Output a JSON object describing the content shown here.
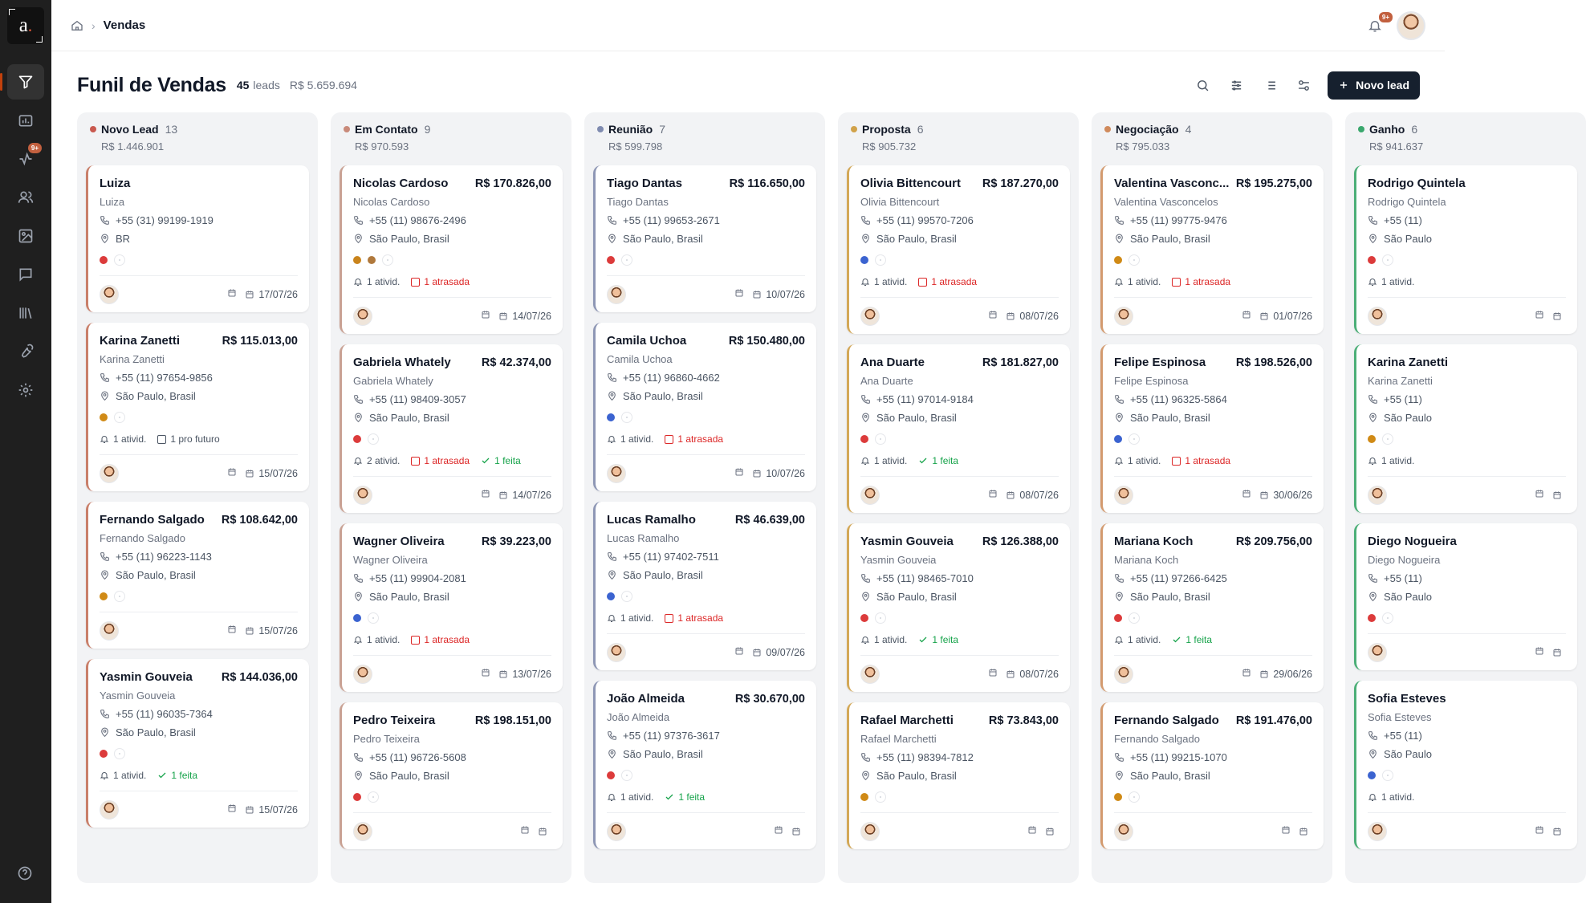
{
  "app": {
    "logo_letter": "a",
    "logo_dot": ".",
    "breadcrumb_current": "Vendas",
    "notifications_badge": "9+",
    "nav_badge": "9+"
  },
  "header": {
    "title": "Funil de Vendas",
    "lead_count": "45",
    "lead_word": "leads",
    "total": "R$ 5.659.694",
    "new_lead_label": "Novo lead"
  },
  "colors": {
    "accent": "#c2603f",
    "sidebar": "#1f1f1f",
    "late": "#dc2626",
    "done": "#16a34a",
    "primary_button": "#16202e"
  },
  "columns": [
    {
      "name": "Novo Lead",
      "count": "13",
      "total": "R$ 1.446.901",
      "color": "#c9594f",
      "border": "#c97f6a",
      "cards": [
        {
          "name": "Luiza",
          "value": "",
          "contact": "Luiza",
          "phone": "+55 (31) 99199-1919",
          "location": "BR",
          "tag": "#dc3b3b",
          "tag2": "",
          "acts": [],
          "date": "17/07/26"
        },
        {
          "name": "Karina Zanetti",
          "value": "R$ 115.013,00",
          "contact": "Karina Zanetti",
          "phone": "+55 (11) 97654-9856",
          "location": "São Paulo, Brasil",
          "tag": "#d08a16",
          "tag2": "",
          "acts": [
            {
              "type": "count",
              "text": "1 ativid."
            },
            {
              "type": "future",
              "text": "1 pro futuro"
            }
          ],
          "date": "15/07/26"
        },
        {
          "name": "Fernando Salgado",
          "value": "R$ 108.642,00",
          "contact": "Fernando Salgado",
          "phone": "+55 (11) 96223-1143",
          "location": "São Paulo, Brasil",
          "tag": "#d08a16",
          "tag2": "",
          "acts": [],
          "date": "15/07/26"
        },
        {
          "name": "Yasmin Gouveia",
          "value": "R$ 144.036,00",
          "contact": "Yasmin Gouveia",
          "phone": "+55 (11) 96035-7364",
          "location": "São Paulo, Brasil",
          "tag": "#dc3b3b",
          "tag2": "",
          "acts": [
            {
              "type": "count",
              "text": "1 ativid."
            },
            {
              "type": "done",
              "text": "1 feita"
            }
          ],
          "date": "15/07/26"
        }
      ]
    },
    {
      "name": "Em Contato",
      "count": "9",
      "total": "R$ 970.593",
      "color": "#c98a7a",
      "border": "#c9a193",
      "cards": [
        {
          "name": "Nicolas Cardoso",
          "value": "R$ 170.826,00",
          "contact": "Nicolas Cardoso",
          "phone": "+55 (11) 98676-2496",
          "location": "São Paulo, Brasil",
          "tag": "#c9841c",
          "tag2": "#b0793c",
          "acts": [
            {
              "type": "count",
              "text": "1 ativid."
            },
            {
              "type": "late",
              "text": "1 atrasada"
            }
          ],
          "date": "14/07/26"
        },
        {
          "name": "Gabriela Whately",
          "value": "R$ 42.374,00",
          "contact": "Gabriela Whately",
          "phone": "+55 (11) 98409-3057",
          "location": "São Paulo, Brasil",
          "tag": "#dc3b3b",
          "tag2": "",
          "acts": [
            {
              "type": "count",
              "text": "2 ativid."
            },
            {
              "type": "late",
              "text": "1 atrasada"
            },
            {
              "type": "done",
              "text": "1 feita"
            }
          ],
          "date": "14/07/26"
        },
        {
          "name": "Wagner Oliveira",
          "value": "R$ 39.223,00",
          "contact": "Wagner Oliveira",
          "phone": "+55 (11) 99904-2081",
          "location": "São Paulo, Brasil",
          "tag": "#3b63d0",
          "tag2": "",
          "acts": [
            {
              "type": "count",
              "text": "1 ativid."
            },
            {
              "type": "late",
              "text": "1 atrasada"
            }
          ],
          "date": "13/07/26"
        },
        {
          "name": "Pedro Teixeira",
          "value": "R$ 198.151,00",
          "contact": "Pedro Teixeira",
          "phone": "+55 (11) 96726-5608",
          "location": "São Paulo, Brasil",
          "tag": "#dc3b3b",
          "tag2": "",
          "acts": [],
          "date": ""
        }
      ]
    },
    {
      "name": "Reunião",
      "count": "7",
      "total": "R$ 599.798",
      "color": "#7f8bb0",
      "border": "#8e97b5",
      "cards": [
        {
          "name": "Tiago Dantas",
          "value": "R$ 116.650,00",
          "contact": "Tiago Dantas",
          "phone": "+55 (11) 99653-2671",
          "location": "São Paulo, Brasil",
          "tag": "#dc3b3b",
          "tag2": "",
          "acts": [],
          "date": "10/07/26"
        },
        {
          "name": "Camila Uchoa",
          "value": "R$ 150.480,00",
          "contact": "Camila Uchoa",
          "phone": "+55 (11) 96860-4662",
          "location": "São Paulo, Brasil",
          "tag": "#3b63d0",
          "tag2": "",
          "acts": [
            {
              "type": "count",
              "text": "1 ativid."
            },
            {
              "type": "late",
              "text": "1 atrasada"
            }
          ],
          "date": "10/07/26"
        },
        {
          "name": "Lucas Ramalho",
          "value": "R$ 46.639,00",
          "contact": "Lucas Ramalho",
          "phone": "+55 (11) 97402-7511",
          "location": "São Paulo, Brasil",
          "tag": "#3b63d0",
          "tag2": "",
          "acts": [
            {
              "type": "count",
              "text": "1 ativid."
            },
            {
              "type": "late",
              "text": "1 atrasada"
            }
          ],
          "date": "09/07/26"
        },
        {
          "name": "João Almeida",
          "value": "R$ 30.670,00",
          "contact": "João Almeida",
          "phone": "+55 (11) 97376-3617",
          "location": "São Paulo, Brasil",
          "tag": "#dc3b3b",
          "tag2": "",
          "acts": [
            {
              "type": "count",
              "text": "1 ativid."
            },
            {
              "type": "done",
              "text": "1 feita"
            }
          ],
          "date": ""
        }
      ]
    },
    {
      "name": "Proposta",
      "count": "6",
      "total": "R$ 905.732",
      "color": "#d1a24a",
      "border": "#d3a857",
      "cards": [
        {
          "name": "Olivia Bittencourt",
          "value": "R$ 187.270,00",
          "contact": "Olivia Bittencourt",
          "phone": "+55 (11) 99570-7206",
          "location": "São Paulo, Brasil",
          "tag": "#3b63d0",
          "tag2": "",
          "acts": [
            {
              "type": "count",
              "text": "1 ativid."
            },
            {
              "type": "late",
              "text": "1 atrasada"
            }
          ],
          "date": "08/07/26"
        },
        {
          "name": "Ana Duarte",
          "value": "R$ 181.827,00",
          "contact": "Ana Duarte",
          "phone": "+55 (11) 97014-9184",
          "location": "São Paulo, Brasil",
          "tag": "#dc3b3b",
          "tag2": "",
          "acts": [
            {
              "type": "count",
              "text": "1 ativid."
            },
            {
              "type": "done",
              "text": "1 feita"
            }
          ],
          "date": "08/07/26"
        },
        {
          "name": "Yasmin Gouveia",
          "value": "R$ 126.388,00",
          "contact": "Yasmin Gouveia",
          "phone": "+55 (11) 98465-7010",
          "location": "São Paulo, Brasil",
          "tag": "#dc3b3b",
          "tag2": "",
          "acts": [
            {
              "type": "count",
              "text": "1 ativid."
            },
            {
              "type": "done",
              "text": "1 feita"
            }
          ],
          "date": "08/07/26"
        },
        {
          "name": "Rafael Marchetti",
          "value": "R$ 73.843,00",
          "contact": "Rafael Marchetti",
          "phone": "+55 (11) 98394-7812",
          "location": "São Paulo, Brasil",
          "tag": "#d08a16",
          "tag2": "",
          "acts": [],
          "date": ""
        }
      ]
    },
    {
      "name": "Negociação",
      "count": "4",
      "total": "R$ 795.033",
      "color": "#d08a5c",
      "border": "#d39a6e",
      "cards": [
        {
          "name": "Valentina Vasconc...",
          "value": "R$ 195.275,00",
          "contact": "Valentina Vasconcelos",
          "phone": "+55 (11) 99775-9476",
          "location": "São Paulo, Brasil",
          "tag": "#d08a16",
          "tag2": "",
          "acts": [
            {
              "type": "count",
              "text": "1 ativid."
            },
            {
              "type": "late",
              "text": "1 atrasada"
            }
          ],
          "date": "01/07/26"
        },
        {
          "name": "Felipe Espinosa",
          "value": "R$ 198.526,00",
          "contact": "Felipe Espinosa",
          "phone": "+55 (11) 96325-5864",
          "location": "São Paulo, Brasil",
          "tag": "#3b63d0",
          "tag2": "",
          "acts": [
            {
              "type": "count",
              "text": "1 ativid."
            },
            {
              "type": "late",
              "text": "1 atrasada"
            }
          ],
          "date": "30/06/26"
        },
        {
          "name": "Mariana Koch",
          "value": "R$ 209.756,00",
          "contact": "Mariana Koch",
          "phone": "+55 (11) 97266-6425",
          "location": "São Paulo, Brasil",
          "tag": "#dc3b3b",
          "tag2": "",
          "acts": [
            {
              "type": "count",
              "text": "1 ativid."
            },
            {
              "type": "done",
              "text": "1 feita"
            }
          ],
          "date": "29/06/26"
        },
        {
          "name": "Fernando Salgado",
          "value": "R$ 191.476,00",
          "contact": "Fernando Salgado",
          "phone": "+55 (11) 99215-1070",
          "location": "São Paulo, Brasil",
          "tag": "#d08a16",
          "tag2": "",
          "acts": [],
          "date": ""
        }
      ]
    },
    {
      "name": "Ganho",
      "count": "6",
      "total": "R$ 941.637",
      "color": "#3aa76d",
      "border": "#4caf78",
      "cards": [
        {
          "name": "Rodrigo Quintela",
          "value": "",
          "contact": "Rodrigo Quintela",
          "phone": "+55 (11)",
          "location": "São Paulo",
          "tag": "#dc3b3b",
          "tag2": "",
          "acts": [
            {
              "type": "count",
              "text": "1 ativid."
            }
          ],
          "date": ""
        },
        {
          "name": "Karina Zanetti",
          "value": "",
          "contact": "Karina Zanetti",
          "phone": "+55 (11)",
          "location": "São Paulo",
          "tag": "#d08a16",
          "tag2": "",
          "acts": [
            {
              "type": "count",
              "text": "1 ativid."
            }
          ],
          "date": ""
        },
        {
          "name": "Diego Nogueira",
          "value": "",
          "contact": "Diego Nogueira",
          "phone": "+55 (11)",
          "location": "São Paulo",
          "tag": "#dc3b3b",
          "tag2": "",
          "acts": [],
          "date": ""
        },
        {
          "name": "Sofia Esteves",
          "value": "",
          "contact": "Sofia Esteves",
          "phone": "+55 (11)",
          "location": "São Paulo",
          "tag": "#3b63d0",
          "tag2": "",
          "acts": [
            {
              "type": "count",
              "text": "1 ativid."
            }
          ],
          "date": ""
        }
      ]
    }
  ]
}
